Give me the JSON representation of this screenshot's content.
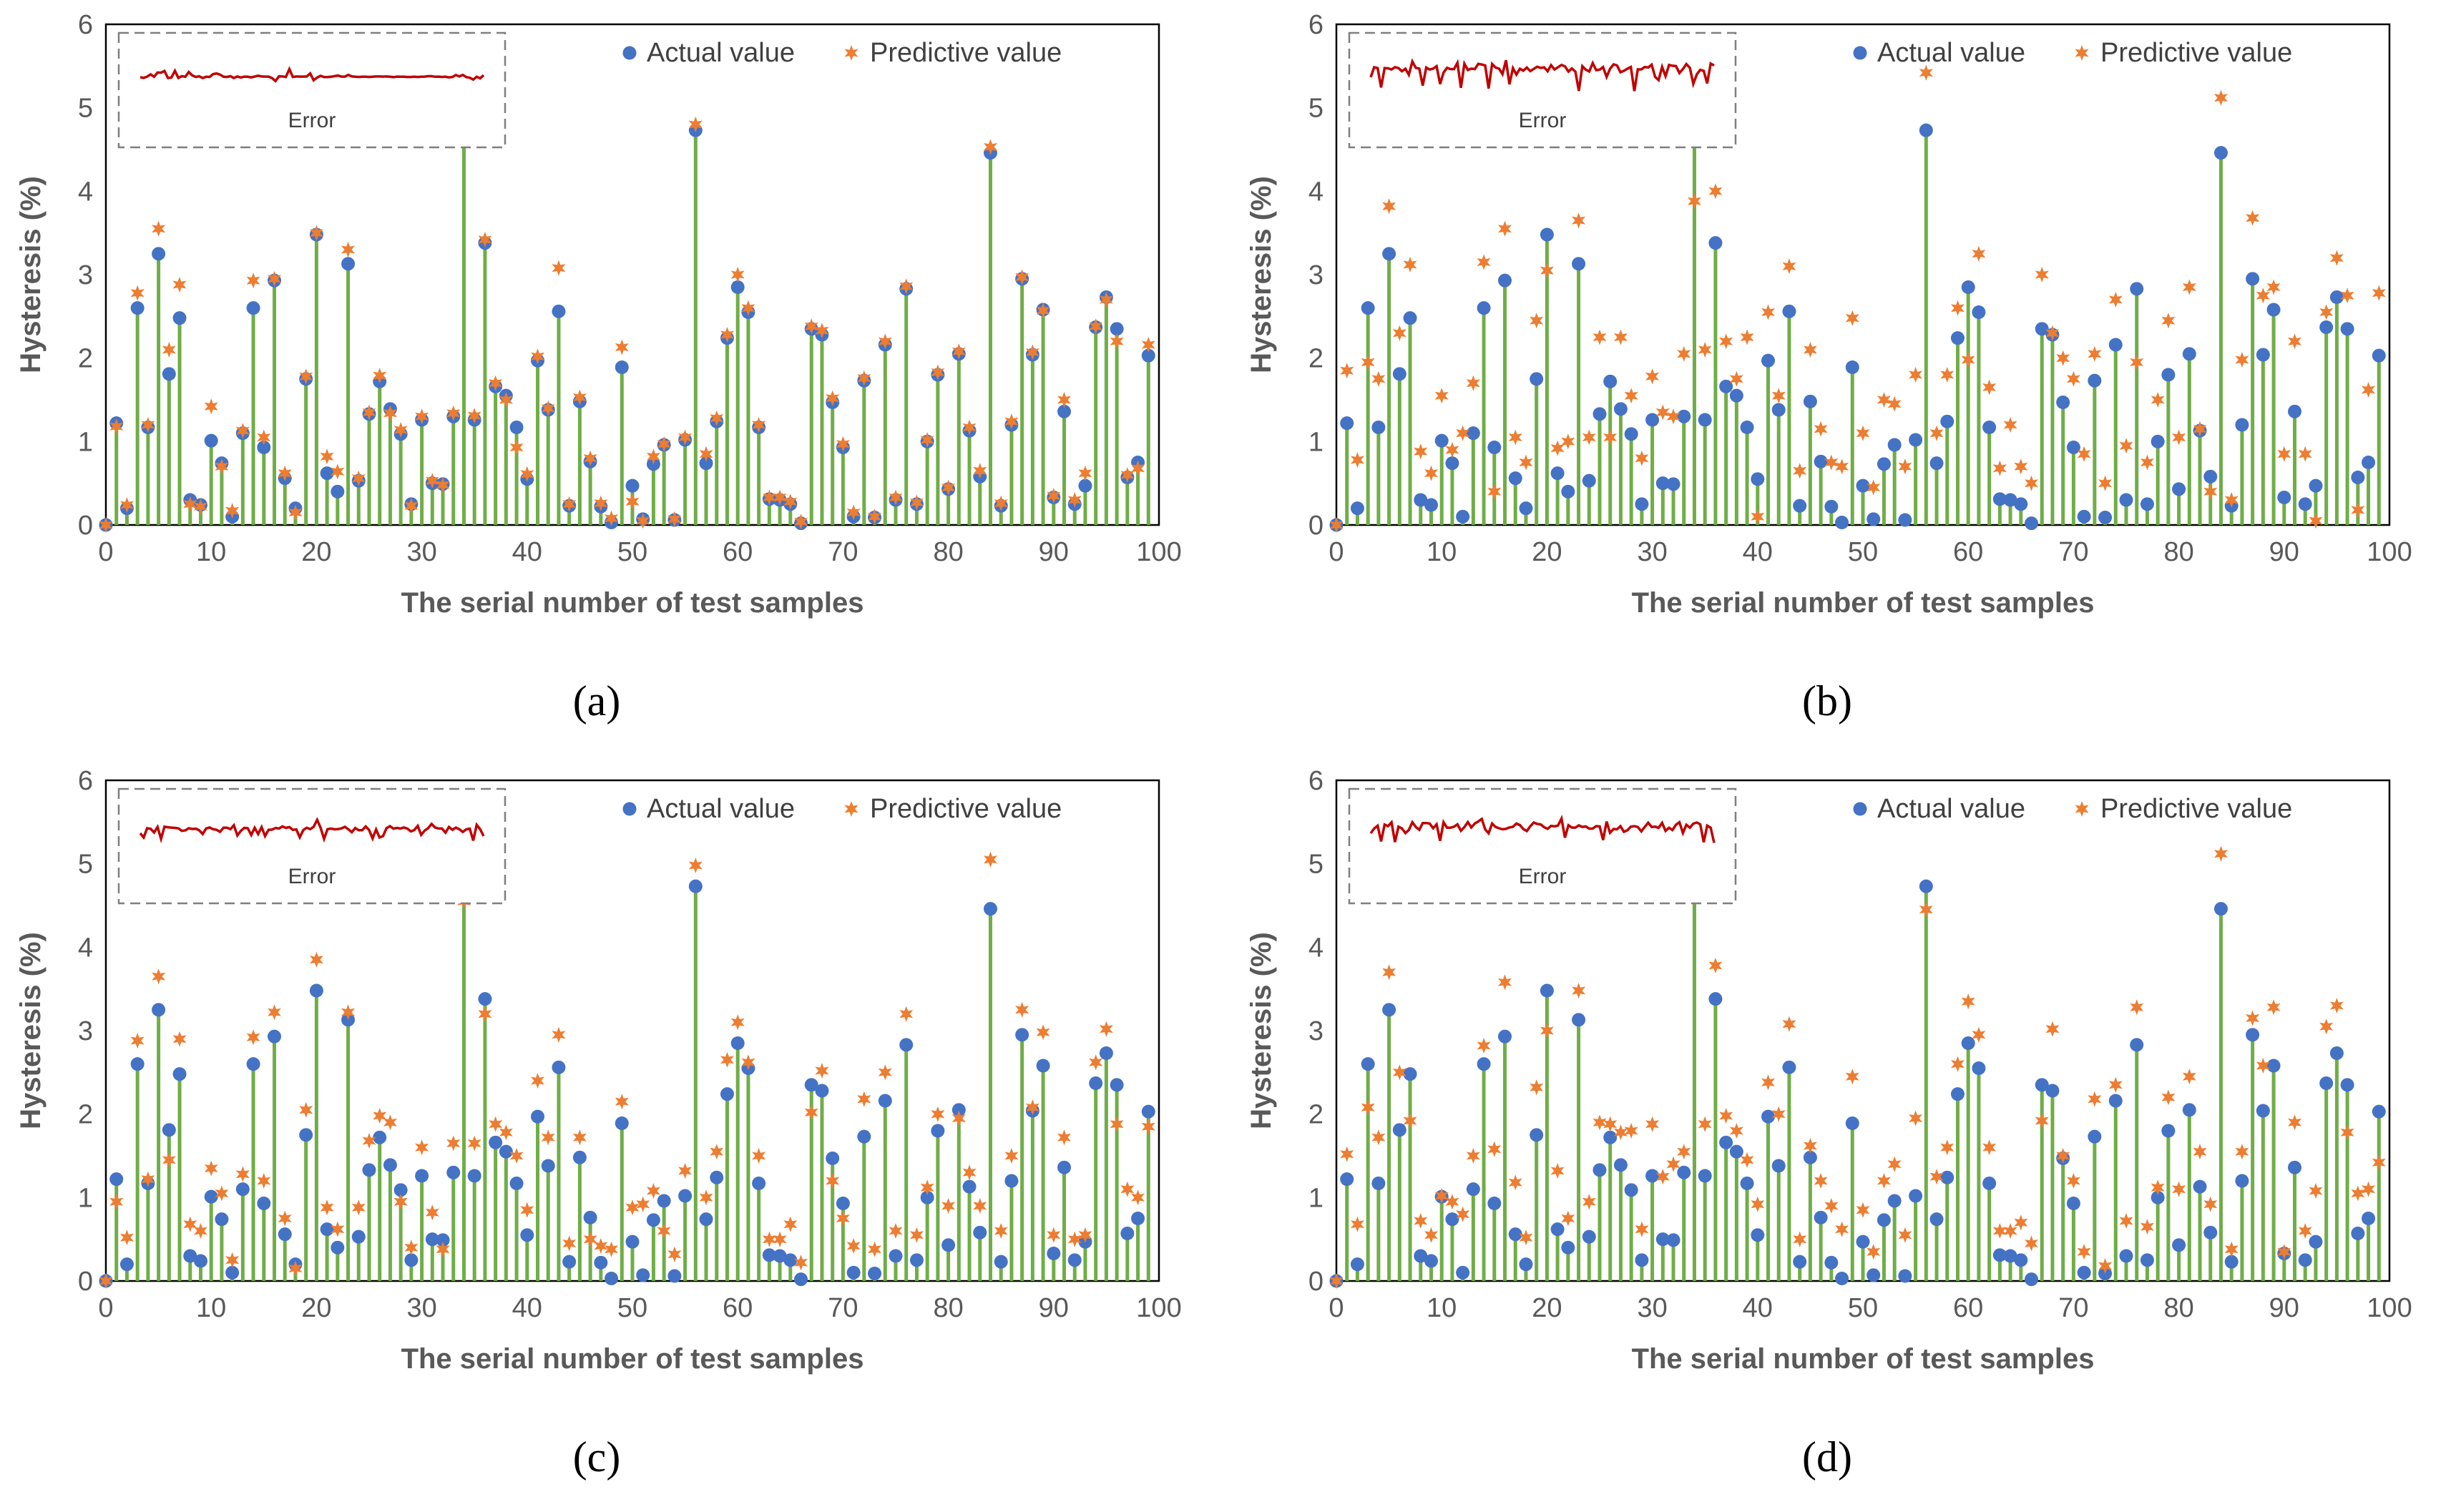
{
  "colors": {
    "stem": "#70AD47",
    "actual": "#4472C4",
    "predicted": "#ED7D31",
    "error": "#C00000",
    "axis": "#595959",
    "inset_border": "#7F7F7F"
  },
  "chart_data": [
    {
      "type": "scatter",
      "panel_label": "(a)",
      "xlabel": "The serial number of test samples",
      "ylabel": "Hysteresis (%)",
      "xlim": [
        0,
        100
      ],
      "ylim": [
        0,
        6
      ],
      "x_ticks": [
        "0",
        "10",
        "20",
        "30",
        "40",
        "50",
        "60",
        "70",
        "80",
        "90",
        "100"
      ],
      "y_ticks": [
        "0",
        "1",
        "2",
        "3",
        "4",
        "5",
        "6"
      ],
      "inset_label": "Error",
      "legend_position": "top-right",
      "series": [
        {
          "name": "Actual value",
          "values": [
            0,
            1.22,
            0.2,
            2.6,
            1.17,
            3.25,
            1.81,
            2.48,
            0.3,
            0.24,
            1.01,
            0.74,
            0.1,
            1.1,
            2.6,
            0.93,
            2.93,
            0.56,
            0.2,
            1.75,
            3.48,
            0.62,
            0.4,
            3.13,
            0.53,
            1.33,
            1.72,
            1.39,
            1.09,
            0.25,
            1.26,
            0.5,
            0.49,
            1.3,
            4.6,
            1.26,
            3.38,
            1.66,
            1.55,
            1.17,
            0.55,
            1.97,
            1.38,
            2.56,
            0.23,
            1.48,
            0.76,
            0.22,
            0.03,
            1.89,
            0.47,
            0.07,
            0.73,
            0.96,
            0.06,
            1.02,
            4.73,
            0.74,
            1.24,
            2.24,
            2.85,
            2.55,
            1.17,
            0.31,
            0.3,
            0.25,
            0.02,
            2.35,
            2.28,
            1.47,
            0.93,
            0.1,
            1.73,
            0.09,
            2.16,
            0.3,
            2.83,
            0.25,
            1.0,
            1.8,
            0.43,
            2.05,
            1.13,
            0.58,
            4.46,
            0.23,
            1.2,
            2.95,
            2.04,
            2.58,
            0.33,
            1.36,
            0.25,
            0.47,
            2.37,
            2.73,
            2.35,
            0.57,
            0.75,
            2.03
          ]
        },
        {
          "name": "Predictive value",
          "values": [
            0,
            1.18,
            0.24,
            2.78,
            1.2,
            3.55,
            2.1,
            2.88,
            0.25,
            0.22,
            1.42,
            0.7,
            0.17,
            1.13,
            2.93,
            1.05,
            2.95,
            0.62,
            0.15,
            1.78,
            3.5,
            0.82,
            0.64,
            3.3,
            0.56,
            1.35,
            1.79,
            1.34,
            1.14,
            0.23,
            1.3,
            0.53,
            0.48,
            1.34,
            4.7,
            1.31,
            3.42,
            1.7,
            1.5,
            0.93,
            0.61,
            2.02,
            1.4,
            3.08,
            0.25,
            1.53,
            0.8,
            0.26,
            0.08,
            2.13,
            0.28,
            0.05,
            0.82,
            0.97,
            0.07,
            1.05,
            4.8,
            0.85,
            1.28,
            2.28,
            3.0,
            2.6,
            1.2,
            0.33,
            0.33,
            0.28,
            0.04,
            2.38,
            2.33,
            1.52,
            0.97,
            0.15,
            1.76,
            0.1,
            2.2,
            0.33,
            2.86,
            0.27,
            1.02,
            1.83,
            0.45,
            2.08,
            1.17,
            0.65,
            4.53,
            0.26,
            1.24,
            2.97,
            2.07,
            2.57,
            0.35,
            1.5,
            0.3,
            0.62,
            2.38,
            2.7,
            2.2,
            0.6,
            0.68,
            2.16
          ]
        }
      ]
    },
    {
      "type": "scatter",
      "panel_label": "(b)",
      "xlabel": "The serial number of test samples",
      "ylabel": "Hysteresis (%)",
      "xlim": [
        0,
        100
      ],
      "ylim": [
        0,
        6
      ],
      "x_ticks": [
        "0",
        "10",
        "20",
        "30",
        "40",
        "50",
        "60",
        "70",
        "80",
        "90",
        "100"
      ],
      "y_ticks": [
        "0",
        "1",
        "2",
        "3",
        "4",
        "5",
        "6"
      ],
      "inset_label": "Error",
      "legend_position": "top-right",
      "series": [
        {
          "name": "Actual value",
          "values": [
            0,
            1.22,
            0.2,
            2.6,
            1.17,
            3.25,
            1.81,
            2.48,
            0.3,
            0.24,
            1.01,
            0.74,
            0.1,
            1.1,
            2.6,
            0.93,
            2.93,
            0.56,
            0.2,
            1.75,
            3.48,
            0.62,
            0.4,
            3.13,
            0.53,
            1.33,
            1.72,
            1.39,
            1.09,
            0.25,
            1.26,
            0.5,
            0.49,
            1.3,
            4.6,
            1.26,
            3.38,
            1.66,
            1.55,
            1.17,
            0.55,
            1.97,
            1.38,
            2.56,
            0.23,
            1.48,
            0.76,
            0.22,
            0.03,
            1.89,
            0.47,
            0.07,
            0.73,
            0.96,
            0.06,
            1.02,
            4.73,
            0.74,
            1.24,
            2.24,
            2.85,
            2.55,
            1.17,
            0.31,
            0.3,
            0.25,
            0.02,
            2.35,
            2.28,
            1.47,
            0.93,
            0.1,
            1.73,
            0.09,
            2.16,
            0.3,
            2.83,
            0.25,
            1.0,
            1.8,
            0.43,
            2.05,
            1.13,
            0.58,
            4.46,
            0.23,
            1.2,
            2.95,
            2.04,
            2.58,
            0.33,
            1.36,
            0.25,
            0.47,
            2.37,
            2.73,
            2.35,
            0.57,
            0.75,
            2.03
          ]
        },
        {
          "name": "Predictive value",
          "values": [
            0,
            1.85,
            0.78,
            1.95,
            1.75,
            3.82,
            2.3,
            3.12,
            0.88,
            0.62,
            1.55,
            0.9,
            1.1,
            1.7,
            3.15,
            0.4,
            3.55,
            1.05,
            0.75,
            2.45,
            3.05,
            0.92,
            1.0,
            3.65,
            1.05,
            2.25,
            1.05,
            2.25,
            1.55,
            0.8,
            1.78,
            1.35,
            1.3,
            2.05,
            3.88,
            2.1,
            4.0,
            2.2,
            1.75,
            2.25,
            0.1,
            2.55,
            1.55,
            3.1,
            0.65,
            2.1,
            1.15,
            0.75,
            0.7,
            2.48,
            1.1,
            0.45,
            1.5,
            1.45,
            0.7,
            1.8,
            5.42,
            1.1,
            1.8,
            2.6,
            1.98,
            3.25,
            1.65,
            0.68,
            1.2,
            0.7,
            0.5,
            3.0,
            2.3,
            2.0,
            1.75,
            0.85,
            2.05,
            0.5,
            2.7,
            0.95,
            1.95,
            0.75,
            1.5,
            2.45,
            1.05,
            2.85,
            1.15,
            0.4,
            5.12,
            0.3,
            1.98,
            3.68,
            2.75,
            2.85,
            0.85,
            2.2,
            0.85,
            0.05,
            2.55,
            3.2,
            2.75,
            0.18,
            1.62,
            2.78
          ]
        }
      ]
    },
    {
      "type": "scatter",
      "panel_label": "(c)",
      "xlabel": "The serial number of test samples",
      "ylabel": "Hysteresis (%)",
      "xlim": [
        0,
        100
      ],
      "ylim": [
        0,
        6
      ],
      "x_ticks": [
        "0",
        "10",
        "20",
        "30",
        "40",
        "50",
        "60",
        "70",
        "80",
        "90",
        "100"
      ],
      "y_ticks": [
        "0",
        "1",
        "2",
        "3",
        "4",
        "5",
        "6"
      ],
      "inset_label": "Error",
      "legend_position": "top-right",
      "series": [
        {
          "name": "Actual value",
          "values": [
            0,
            1.22,
            0.2,
            2.6,
            1.17,
            3.25,
            1.81,
            2.48,
            0.3,
            0.24,
            1.01,
            0.74,
            0.1,
            1.1,
            2.6,
            0.93,
            2.93,
            0.56,
            0.2,
            1.75,
            3.48,
            0.62,
            0.4,
            3.13,
            0.53,
            1.33,
            1.72,
            1.39,
            1.09,
            0.25,
            1.26,
            0.5,
            0.49,
            1.3,
            4.6,
            1.26,
            3.38,
            1.66,
            1.55,
            1.17,
            0.55,
            1.97,
            1.38,
            2.56,
            0.23,
            1.48,
            0.76,
            0.22,
            0.03,
            1.89,
            0.47,
            0.07,
            0.73,
            0.96,
            0.06,
            1.02,
            4.73,
            0.74,
            1.24,
            2.24,
            2.85,
            2.55,
            1.17,
            0.31,
            0.3,
            0.25,
            0.02,
            2.35,
            2.28,
            1.47,
            0.93,
            0.1,
            1.73,
            0.09,
            2.16,
            0.3,
            2.83,
            0.25,
            1.0,
            1.8,
            0.43,
            2.05,
            1.13,
            0.58,
            4.46,
            0.23,
            1.2,
            2.95,
            2.04,
            2.58,
            0.33,
            1.36,
            0.25,
            0.47,
            2.37,
            2.73,
            2.35,
            0.57,
            0.75,
            2.03
          ]
        },
        {
          "name": "Predictive value",
          "values": [
            0,
            0.95,
            0.52,
            2.88,
            1.22,
            3.65,
            1.45,
            2.9,
            0.68,
            0.6,
            1.35,
            1.05,
            0.25,
            1.28,
            2.92,
            1.2,
            3.22,
            0.75,
            0.15,
            2.05,
            3.85,
            0.88,
            0.62,
            3.22,
            0.88,
            1.68,
            1.98,
            1.9,
            0.95,
            0.4,
            1.6,
            0.82,
            0.38,
            1.65,
            4.55,
            1.65,
            3.2,
            1.88,
            1.78,
            1.5,
            0.85,
            2.4,
            1.72,
            2.95,
            0.45,
            1.72,
            0.5,
            0.42,
            0.38,
            2.15,
            0.88,
            0.92,
            1.08,
            0.6,
            0.32,
            1.32,
            4.98,
            1.0,
            1.55,
            2.65,
            3.1,
            2.62,
            1.5,
            0.5,
            0.5,
            0.68,
            0.22,
            2.02,
            2.52,
            1.2,
            0.75,
            0.42,
            2.18,
            0.38,
            2.5,
            0.6,
            3.2,
            0.55,
            1.12,
            2.0,
            0.9,
            1.95,
            1.3,
            0.9,
            5.05,
            0.6,
            1.5,
            3.25,
            2.08,
            2.98,
            0.55,
            1.72,
            0.5,
            0.55,
            2.62,
            3.02,
            1.88,
            1.1,
            1.0,
            1.85
          ]
        }
      ]
    },
    {
      "type": "scatter",
      "panel_label": "(d)",
      "xlabel": "The serial number of test samples",
      "ylabel": "Hysteresis (%)",
      "xlim": [
        0,
        100
      ],
      "ylim": [
        0,
        6
      ],
      "x_ticks": [
        "0",
        "10",
        "20",
        "30",
        "40",
        "50",
        "60",
        "70",
        "80",
        "90",
        "100"
      ],
      "y_ticks": [
        "0",
        "1",
        "2",
        "3",
        "4",
        "5",
        "6"
      ],
      "inset_label": "Error",
      "legend_position": "top-right",
      "series": [
        {
          "name": "Actual value",
          "values": [
            0,
            1.22,
            0.2,
            2.6,
            1.17,
            3.25,
            1.81,
            2.48,
            0.3,
            0.24,
            1.01,
            0.74,
            0.1,
            1.1,
            2.6,
            0.93,
            2.93,
            0.56,
            0.2,
            1.75,
            3.48,
            0.62,
            0.4,
            3.13,
            0.53,
            1.33,
            1.72,
            1.39,
            1.09,
            0.25,
            1.26,
            0.5,
            0.49,
            1.3,
            4.6,
            1.26,
            3.38,
            1.66,
            1.55,
            1.17,
            0.55,
            1.97,
            1.38,
            2.56,
            0.23,
            1.48,
            0.76,
            0.22,
            0.03,
            1.89,
            0.47,
            0.07,
            0.73,
            0.96,
            0.06,
            1.02,
            4.73,
            0.74,
            1.24,
            2.24,
            2.85,
            2.55,
            1.17,
            0.31,
            0.3,
            0.25,
            0.02,
            2.35,
            2.28,
            1.47,
            0.93,
            0.1,
            1.73,
            0.09,
            2.16,
            0.3,
            2.83,
            0.25,
            1.0,
            1.8,
            0.43,
            2.05,
            1.13,
            0.58,
            4.46,
            0.23,
            1.2,
            2.95,
            2.04,
            2.58,
            0.33,
            1.36,
            0.25,
            0.47,
            2.37,
            2.73,
            2.35,
            0.57,
            0.75,
            2.03
          ]
        },
        {
          "name": "Predictive value",
          "values": [
            0,
            1.52,
            0.68,
            2.08,
            1.72,
            3.7,
            2.5,
            1.92,
            0.72,
            0.55,
            1.02,
            0.95,
            0.8,
            1.5,
            2.82,
            1.58,
            3.58,
            1.18,
            0.52,
            2.32,
            3.0,
            1.32,
            0.75,
            3.48,
            0.95,
            1.9,
            1.88,
            1.78,
            1.8,
            0.62,
            1.88,
            1.25,
            1.4,
            1.55,
            4.6,
            1.88,
            3.78,
            1.98,
            1.8,
            1.45,
            0.92,
            2.38,
            2.0,
            3.08,
            0.5,
            1.62,
            1.2,
            0.9,
            0.62,
            2.45,
            0.85,
            0.35,
            1.2,
            1.4,
            0.55,
            1.95,
            4.45,
            1.25,
            1.6,
            2.6,
            3.35,
            2.95,
            1.6,
            0.6,
            0.6,
            0.7,
            0.45,
            1.92,
            3.02,
            1.5,
            1.2,
            0.35,
            2.18,
            0.18,
            2.35,
            0.72,
            3.28,
            0.65,
            1.12,
            2.2,
            1.1,
            2.45,
            1.55,
            0.92,
            5.12,
            0.38,
            1.55,
            3.15,
            2.58,
            3.28,
            0.35,
            1.9,
            0.6,
            1.08,
            3.05,
            3.3,
            1.78,
            1.05,
            1.1,
            1.42
          ]
        }
      ]
    }
  ]
}
